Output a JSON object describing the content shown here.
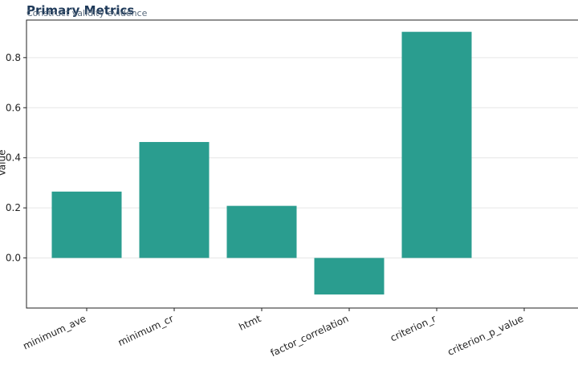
{
  "chart_data": {
    "type": "bar",
    "title": "Primary Metrics",
    "subtitle": "Construct validity evidence",
    "ylabel": "Value",
    "xlabel": "",
    "categories": [
      "minimum_ave",
      "minimum_cr",
      "htmt",
      "factor_correlation",
      "criterion_r",
      "criterion_p_value"
    ],
    "values": [
      0.265,
      0.463,
      0.208,
      -0.146,
      0.903,
      0.0
    ],
    "ylim": [
      -0.2,
      0.95
    ],
    "yticks": [
      "0.0",
      "0.2",
      "0.4",
      "0.6",
      "0.8"
    ],
    "grid": true,
    "bar_color": "#2a9d8f"
  }
}
